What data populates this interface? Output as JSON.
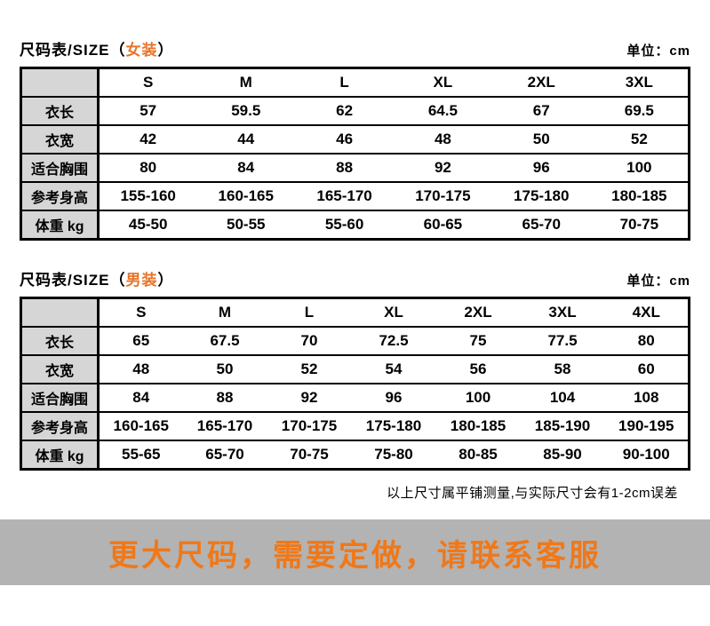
{
  "page": {
    "unit_label": "单位：cm",
    "note": "以上尺寸属平铺测量,与实际尺寸会有1-2cm误差",
    "banner_text": "更大尺码，需要定做，请联系客服"
  },
  "colors": {
    "accent_orange": "#e8742a",
    "banner_orange": "#f07818",
    "banner_bg": "#b3b3b3",
    "label_cell_bg": "#d6d6d6",
    "border_black": "#000000"
  },
  "women": {
    "title_prefix": "尺码表/SIZE（",
    "title_gender": "女装",
    "title_suffix": "）",
    "sizes": [
      "S",
      "M",
      "L",
      "XL",
      "2XL",
      "3XL"
    ],
    "rows": [
      {
        "label": "衣长",
        "values": [
          "57",
          "59.5",
          "62",
          "64.5",
          "67",
          "69.5"
        ]
      },
      {
        "label": "衣宽",
        "values": [
          "42",
          "44",
          "46",
          "48",
          "50",
          "52"
        ]
      },
      {
        "label": "适合胸围",
        "values": [
          "80",
          "84",
          "88",
          "92",
          "96",
          "100"
        ]
      },
      {
        "label": "参考身高",
        "values": [
          "155-160",
          "160-165",
          "165-170",
          "170-175",
          "175-180",
          "180-185"
        ]
      },
      {
        "label": "体重 kg",
        "values": [
          "45-50",
          "50-55",
          "55-60",
          "60-65",
          "65-70",
          "70-75"
        ]
      }
    ]
  },
  "men": {
    "title_prefix": "尺码表/SIZE（",
    "title_gender": "男装",
    "title_suffix": "）",
    "sizes": [
      "S",
      "M",
      "L",
      "XL",
      "2XL",
      "3XL",
      "4XL"
    ],
    "rows": [
      {
        "label": "衣长",
        "values": [
          "65",
          "67.5",
          "70",
          "72.5",
          "75",
          "77.5",
          "80"
        ]
      },
      {
        "label": "衣宽",
        "values": [
          "48",
          "50",
          "52",
          "54",
          "56",
          "58",
          "60"
        ]
      },
      {
        "label": "适合胸围",
        "values": [
          "84",
          "88",
          "92",
          "96",
          "100",
          "104",
          "108"
        ]
      },
      {
        "label": "参考身高",
        "values": [
          "160-165",
          "165-170",
          "170-175",
          "175-180",
          "180-185",
          "185-190",
          "190-195"
        ]
      },
      {
        "label": "体重 kg",
        "values": [
          "55-65",
          "65-70",
          "70-75",
          "75-80",
          "80-85",
          "85-90",
          "90-100"
        ]
      }
    ]
  }
}
